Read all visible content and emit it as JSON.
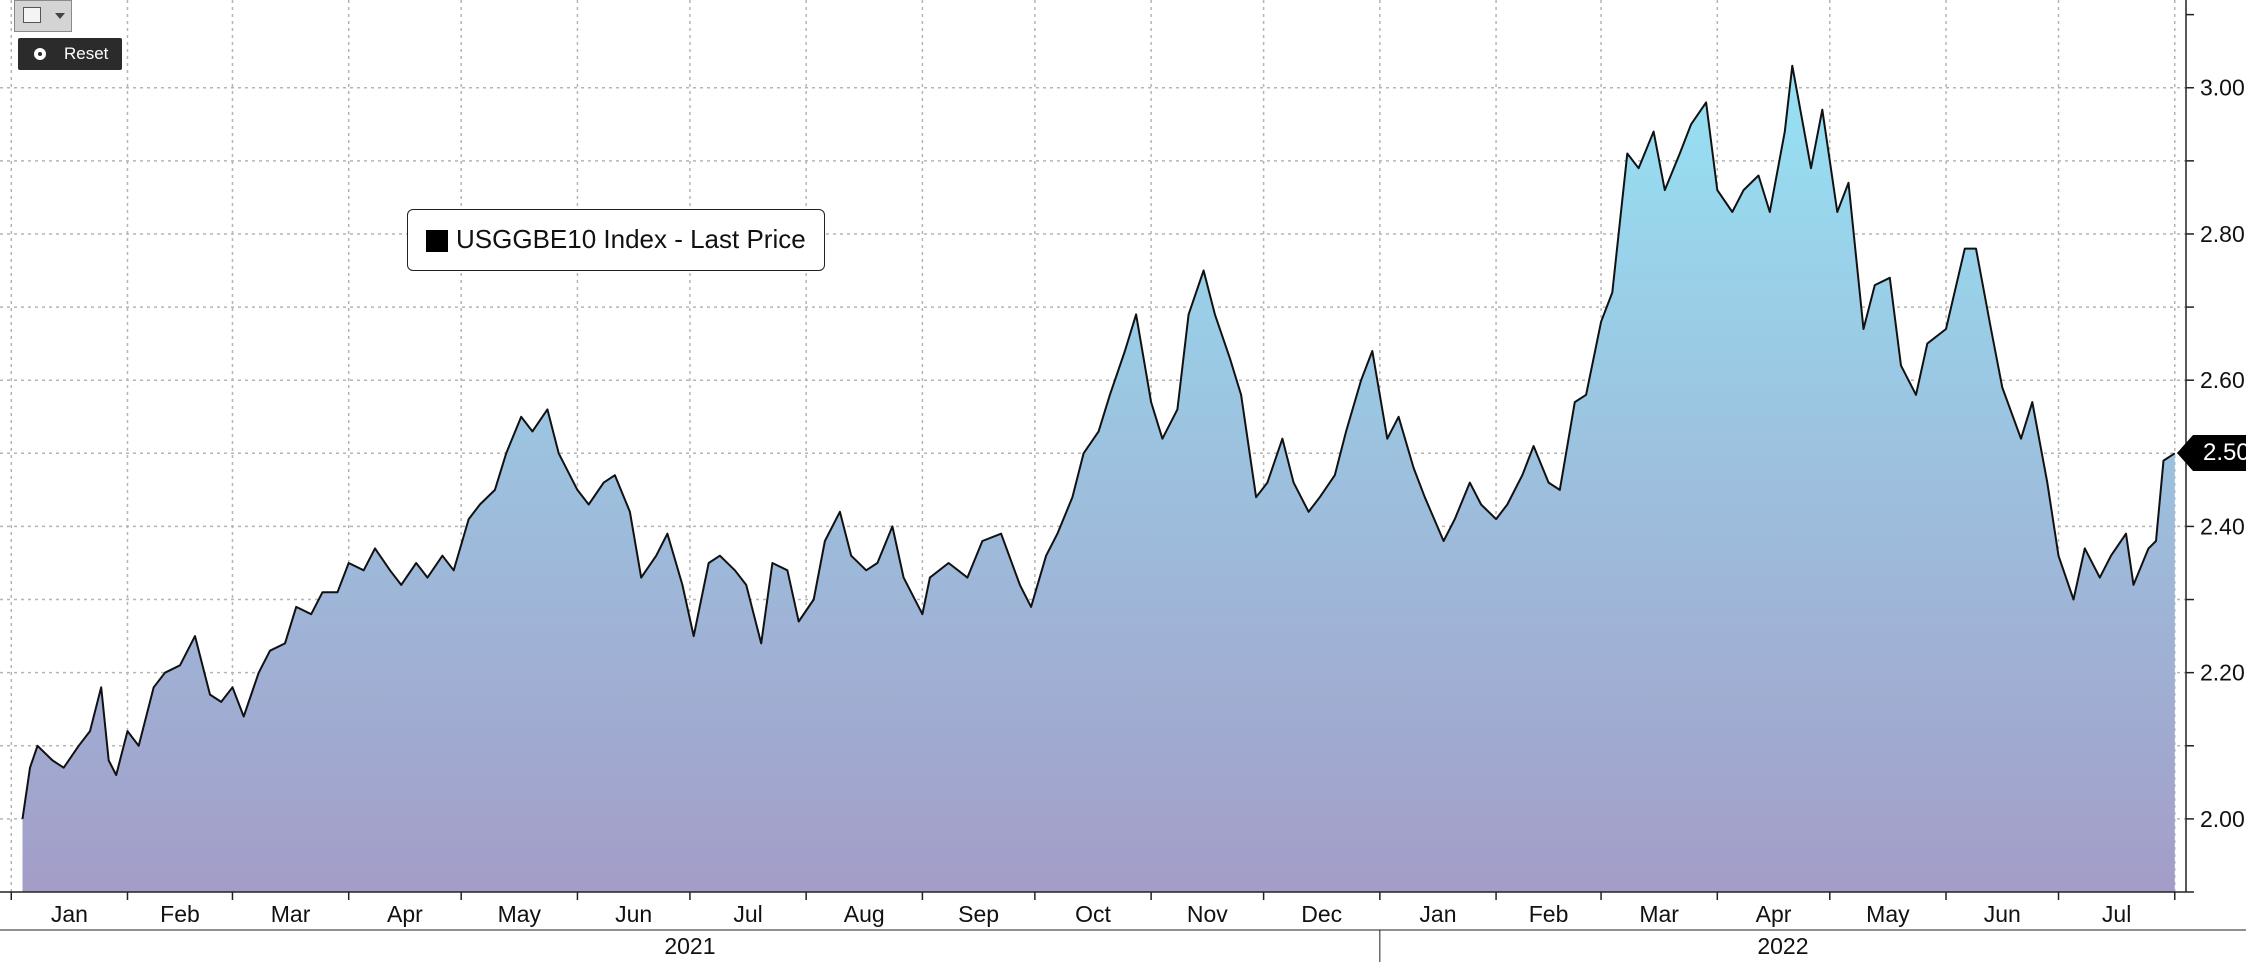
{
  "toolbar": {
    "chart_type_icon": "line-chart-icon",
    "dropdown_icon": "chevron-down-icon",
    "reset_label": "Reset",
    "reset_icon": "radio-dot-icon"
  },
  "legend": {
    "label": "USGGBE10 Index - Last Price",
    "swatch_color": "#000000"
  },
  "last_value_label": "2.50",
  "colors": {
    "fill_top": "#96e2f4",
    "fill_bottom": "#a39dc8",
    "line": "#111111",
    "grid": "#b5b5b5",
    "background": "#ffffff"
  },
  "chart_data": {
    "type": "area",
    "title": "",
    "xlabel": "",
    "ylabel": "",
    "ylim": [
      1.9,
      3.12
    ],
    "y_ticks": [
      "2.00",
      "2.20",
      "2.40",
      "2.60",
      "2.80",
      "3.00"
    ],
    "x_month_labels": [
      "Jan",
      "Feb",
      "Mar",
      "Apr",
      "May",
      "Jun",
      "Jul",
      "Aug",
      "Sep",
      "Oct",
      "Nov",
      "Dec",
      "Jan",
      "Feb",
      "Mar",
      "Apr",
      "May",
      "Jun",
      "Jul"
    ],
    "x_year_labels": [
      "2021",
      "2022"
    ],
    "grid": true,
    "legend_position": "top-left",
    "last_value": 2.5,
    "series": [
      {
        "name": "USGGBE10 Index - Last Price",
        "points": [
          [
            "2021-01-04",
            2.0
          ],
          [
            "2021-01-06",
            2.07
          ],
          [
            "2021-01-08",
            2.1
          ],
          [
            "2021-01-12",
            2.08
          ],
          [
            "2021-01-15",
            2.07
          ],
          [
            "2021-01-19",
            2.1
          ],
          [
            "2021-01-22",
            2.12
          ],
          [
            "2021-01-25",
            2.18
          ],
          [
            "2021-01-27",
            2.08
          ],
          [
            "2021-01-29",
            2.06
          ],
          [
            "2021-02-01",
            2.12
          ],
          [
            "2021-02-04",
            2.1
          ],
          [
            "2021-02-08",
            2.18
          ],
          [
            "2021-02-11",
            2.2
          ],
          [
            "2021-02-15",
            2.21
          ],
          [
            "2021-02-19",
            2.25
          ],
          [
            "2021-02-23",
            2.17
          ],
          [
            "2021-02-26",
            2.16
          ],
          [
            "2021-03-01",
            2.18
          ],
          [
            "2021-03-04",
            2.14
          ],
          [
            "2021-03-08",
            2.2
          ],
          [
            "2021-03-11",
            2.23
          ],
          [
            "2021-03-15",
            2.24
          ],
          [
            "2021-03-18",
            2.29
          ],
          [
            "2021-03-22",
            2.28
          ],
          [
            "2021-03-25",
            2.31
          ],
          [
            "2021-03-29",
            2.31
          ],
          [
            "2021-04-01",
            2.35
          ],
          [
            "2021-04-05",
            2.34
          ],
          [
            "2021-04-08",
            2.37
          ],
          [
            "2021-04-12",
            2.34
          ],
          [
            "2021-04-15",
            2.32
          ],
          [
            "2021-04-19",
            2.35
          ],
          [
            "2021-04-22",
            2.33
          ],
          [
            "2021-04-26",
            2.36
          ],
          [
            "2021-04-29",
            2.34
          ],
          [
            "2021-05-03",
            2.41
          ],
          [
            "2021-05-06",
            2.43
          ],
          [
            "2021-05-10",
            2.45
          ],
          [
            "2021-05-13",
            2.5
          ],
          [
            "2021-05-17",
            2.55
          ],
          [
            "2021-05-20",
            2.53
          ],
          [
            "2021-05-24",
            2.56
          ],
          [
            "2021-05-27",
            2.5
          ],
          [
            "2021-06-01",
            2.45
          ],
          [
            "2021-06-04",
            2.43
          ],
          [
            "2021-06-08",
            2.46
          ],
          [
            "2021-06-11",
            2.47
          ],
          [
            "2021-06-15",
            2.42
          ],
          [
            "2021-06-18",
            2.33
          ],
          [
            "2021-06-22",
            2.36
          ],
          [
            "2021-06-25",
            2.39
          ],
          [
            "2021-06-29",
            2.32
          ],
          [
            "2021-07-02",
            2.25
          ],
          [
            "2021-07-06",
            2.35
          ],
          [
            "2021-07-09",
            2.36
          ],
          [
            "2021-07-13",
            2.34
          ],
          [
            "2021-07-16",
            2.32
          ],
          [
            "2021-07-20",
            2.24
          ],
          [
            "2021-07-23",
            2.35
          ],
          [
            "2021-07-27",
            2.34
          ],
          [
            "2021-07-30",
            2.27
          ],
          [
            "2021-08-03",
            2.3
          ],
          [
            "2021-08-06",
            2.38
          ],
          [
            "2021-08-10",
            2.42
          ],
          [
            "2021-08-13",
            2.36
          ],
          [
            "2021-08-17",
            2.34
          ],
          [
            "2021-08-20",
            2.35
          ],
          [
            "2021-08-24",
            2.4
          ],
          [
            "2021-08-27",
            2.33
          ],
          [
            "2021-09-01",
            2.28
          ],
          [
            "2021-09-03",
            2.33
          ],
          [
            "2021-09-08",
            2.35
          ],
          [
            "2021-09-13",
            2.33
          ],
          [
            "2021-09-17",
            2.38
          ],
          [
            "2021-09-22",
            2.39
          ],
          [
            "2021-09-27",
            2.32
          ],
          [
            "2021-09-30",
            2.29
          ],
          [
            "2021-10-04",
            2.36
          ],
          [
            "2021-10-07",
            2.39
          ],
          [
            "2021-10-11",
            2.44
          ],
          [
            "2021-10-14",
            2.5
          ],
          [
            "2021-10-18",
            2.53
          ],
          [
            "2021-10-21",
            2.58
          ],
          [
            "2021-10-25",
            2.64
          ],
          [
            "2021-10-28",
            2.69
          ],
          [
            "2021-11-01",
            2.57
          ],
          [
            "2021-11-04",
            2.52
          ],
          [
            "2021-11-08",
            2.56
          ],
          [
            "2021-11-11",
            2.69
          ],
          [
            "2021-11-15",
            2.75
          ],
          [
            "2021-11-18",
            2.69
          ],
          [
            "2021-11-22",
            2.63
          ],
          [
            "2021-11-25",
            2.58
          ],
          [
            "2021-11-29",
            2.44
          ],
          [
            "2021-12-02",
            2.46
          ],
          [
            "2021-12-06",
            2.52
          ],
          [
            "2021-12-09",
            2.46
          ],
          [
            "2021-12-13",
            2.42
          ],
          [
            "2021-12-16",
            2.44
          ],
          [
            "2021-12-20",
            2.47
          ],
          [
            "2021-12-23",
            2.53
          ],
          [
            "2021-12-27",
            2.6
          ],
          [
            "2021-12-30",
            2.64
          ],
          [
            "2022-01-03",
            2.52
          ],
          [
            "2022-01-06",
            2.55
          ],
          [
            "2022-01-10",
            2.48
          ],
          [
            "2022-01-13",
            2.44
          ],
          [
            "2022-01-18",
            2.38
          ],
          [
            "2022-01-21",
            2.41
          ],
          [
            "2022-01-25",
            2.46
          ],
          [
            "2022-01-28",
            2.43
          ],
          [
            "2022-02-01",
            2.41
          ],
          [
            "2022-02-04",
            2.43
          ],
          [
            "2022-02-08",
            2.47
          ],
          [
            "2022-02-11",
            2.51
          ],
          [
            "2022-02-15",
            2.46
          ],
          [
            "2022-02-18",
            2.45
          ],
          [
            "2022-02-22",
            2.57
          ],
          [
            "2022-02-25",
            2.58
          ],
          [
            "2022-03-01",
            2.68
          ],
          [
            "2022-03-04",
            2.72
          ],
          [
            "2022-03-08",
            2.91
          ],
          [
            "2022-03-11",
            2.89
          ],
          [
            "2022-03-15",
            2.94
          ],
          [
            "2022-03-18",
            2.86
          ],
          [
            "2022-03-22",
            2.91
          ],
          [
            "2022-03-25",
            2.95
          ],
          [
            "2022-03-29",
            2.98
          ],
          [
            "2022-04-01",
            2.86
          ],
          [
            "2022-04-05",
            2.83
          ],
          [
            "2022-04-08",
            2.86
          ],
          [
            "2022-04-12",
            2.88
          ],
          [
            "2022-04-15",
            2.83
          ],
          [
            "2022-04-19",
            2.94
          ],
          [
            "2022-04-21",
            3.03
          ],
          [
            "2022-04-26",
            2.89
          ],
          [
            "2022-04-29",
            2.97
          ],
          [
            "2022-05-03",
            2.83
          ],
          [
            "2022-05-06",
            2.87
          ],
          [
            "2022-05-10",
            2.67
          ],
          [
            "2022-05-13",
            2.73
          ],
          [
            "2022-05-17",
            2.74
          ],
          [
            "2022-05-20",
            2.62
          ],
          [
            "2022-05-24",
            2.58
          ],
          [
            "2022-05-27",
            2.65
          ],
          [
            "2022-06-01",
            2.67
          ],
          [
            "2022-06-06",
            2.78
          ],
          [
            "2022-06-09",
            2.78
          ],
          [
            "2022-06-13",
            2.67
          ],
          [
            "2022-06-16",
            2.59
          ],
          [
            "2022-06-21",
            2.52
          ],
          [
            "2022-06-24",
            2.57
          ],
          [
            "2022-06-28",
            2.46
          ],
          [
            "2022-07-01",
            2.36
          ],
          [
            "2022-07-05",
            2.3
          ],
          [
            "2022-07-08",
            2.37
          ],
          [
            "2022-07-12",
            2.33
          ],
          [
            "2022-07-15",
            2.36
          ],
          [
            "2022-07-19",
            2.39
          ],
          [
            "2022-07-21",
            2.32
          ],
          [
            "2022-07-25",
            2.37
          ],
          [
            "2022-07-27",
            2.38
          ],
          [
            "2022-07-29",
            2.49
          ],
          [
            "2022-08-01",
            2.5
          ]
        ]
      }
    ]
  }
}
